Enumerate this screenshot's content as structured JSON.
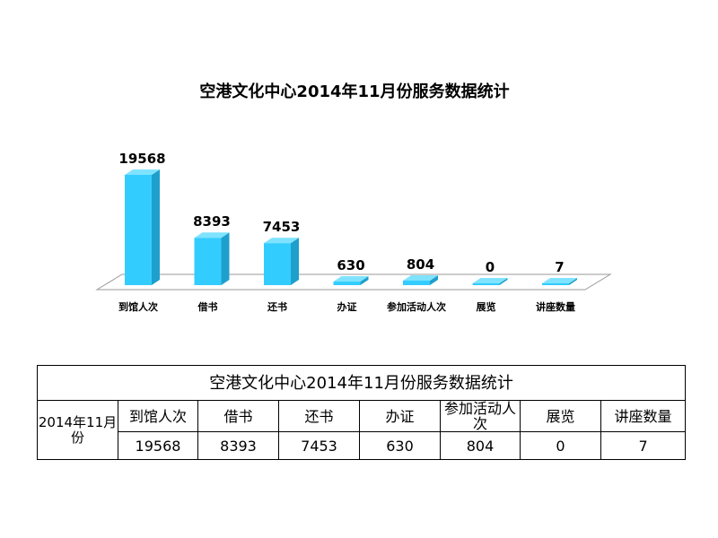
{
  "chart_data": {
    "type": "bar",
    "title": "空港文化中心2014年11月份服务数据统计",
    "categories": [
      "到馆人次",
      "借书",
      "还书",
      "办证",
      "参加活动人次",
      "展览",
      "讲座数量"
    ],
    "values": [
      19568,
      8393,
      7453,
      630,
      804,
      0,
      7
    ],
    "xlabel": "",
    "ylabel": "",
    "grid": false,
    "legend": "none",
    "bar_color": "#33ccff",
    "bar_side_color": "#1f9fcc",
    "bar_top_color": "#7fe3ff"
  },
  "table": {
    "title": "空港文化中心2014年11月份服务数据统计",
    "period": "2014年11月份",
    "headers": [
      "到馆人次",
      "借书",
      "还书",
      "办证",
      "参加活动人次",
      "展览",
      "讲座数量"
    ],
    "values": [
      "19568",
      "8393",
      "7453",
      "630",
      "804",
      "0",
      "7"
    ]
  }
}
